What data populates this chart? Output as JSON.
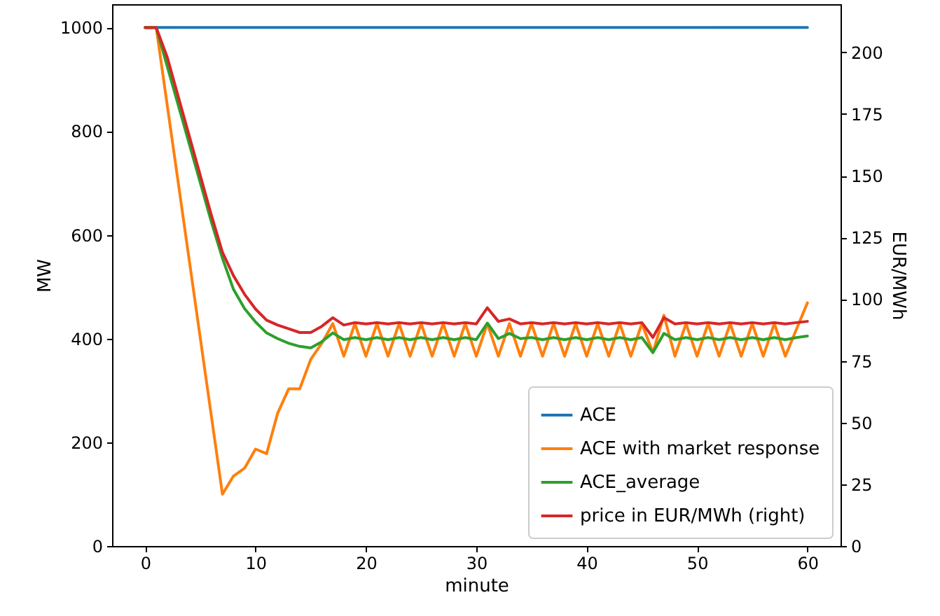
{
  "chart_data": {
    "type": "line",
    "xlabel": "minute",
    "ylabel": "MW",
    "y2label": "EUR/MWh",
    "x": [
      0,
      1,
      2,
      3,
      4,
      5,
      6,
      7,
      8,
      9,
      10,
      11,
      12,
      13,
      14,
      15,
      16,
      17,
      18,
      19,
      20,
      21,
      22,
      23,
      24,
      25,
      26,
      27,
      28,
      29,
      30,
      31,
      32,
      33,
      34,
      35,
      36,
      37,
      38,
      39,
      40,
      41,
      42,
      43,
      44,
      45,
      46,
      47,
      48,
      49,
      50,
      51,
      52,
      53,
      54,
      55,
      56,
      57,
      58,
      59,
      60
    ],
    "series": [
      {
        "name": "ACE",
        "color": "#1f77b4",
        "values": [
          1000,
          1000,
          1000,
          1000,
          1000,
          1000,
          1000,
          1000,
          1000,
          1000,
          1000,
          1000,
          1000,
          1000,
          1000,
          1000,
          1000,
          1000,
          1000,
          1000,
          1000,
          1000,
          1000,
          1000,
          1000,
          1000,
          1000,
          1000,
          1000,
          1000,
          1000,
          1000,
          1000,
          1000,
          1000,
          1000,
          1000,
          1000,
          1000,
          1000,
          1000,
          1000,
          1000,
          1000,
          1000,
          1000,
          1000,
          1000,
          1000,
          1000,
          1000,
          1000,
          1000,
          1000,
          1000,
          1000,
          1000,
          1000,
          1000,
          1000,
          1000
        ]
      },
      {
        "name": "ACE with market response",
        "color": "#ff7f0e",
        "values": [
          1000,
          1000,
          850,
          700,
          550,
          400,
          250,
          100,
          135,
          150,
          187,
          178,
          256,
          303,
          303,
          360,
          391,
          429,
          366,
          429,
          366,
          429,
          366,
          429,
          366,
          429,
          366,
          429,
          366,
          429,
          366,
          429,
          366,
          429,
          366,
          429,
          366,
          429,
          366,
          429,
          366,
          429,
          366,
          429,
          366,
          429,
          373,
          445,
          366,
          429,
          366,
          429,
          366,
          429,
          366,
          429,
          366,
          429,
          366,
          418,
          469
        ]
      },
      {
        "name": "ACE_average",
        "color": "#2ca02c",
        "values": [
          1000,
          1000,
          925,
          850,
          775,
          700,
          625,
          555,
          495,
          458,
          432,
          411,
          400,
          391,
          385,
          382,
          394,
          411,
          398,
          402,
          398,
          402,
          398,
          402,
          398,
          402,
          398,
          402,
          398,
          402,
          398,
          430,
          400,
          410,
          400,
          402,
          398,
          402,
          398,
          402,
          398,
          402,
          398,
          402,
          398,
          402,
          373,
          410,
          398,
          402,
          398,
          402,
          398,
          402,
          398,
          402,
          398,
          402,
          398,
          402,
          405
        ]
      },
      {
        "name": "price in EUR/MWh (right)",
        "color": "#d62728",
        "axis": "y2",
        "values": [
          210,
          210,
          198,
          182,
          166,
          150,
          134,
          119,
          109.5,
          102,
          96,
          91.5,
          89.5,
          88,
          86.5,
          86.5,
          89,
          92.5,
          89.5,
          90.5,
          90,
          90.5,
          90,
          90.5,
          90,
          90.5,
          90,
          90.5,
          90,
          90.5,
          90,
          96.5,
          91,
          92,
          90,
          90.5,
          90,
          90.5,
          90,
          90.5,
          90,
          90.5,
          90,
          90.5,
          90,
          90.5,
          84.5,
          92.5,
          90,
          90.5,
          90,
          90.5,
          90,
          90.5,
          90,
          90.5,
          90,
          90.5,
          90,
          90.5,
          91
        ]
      }
    ],
    "xlim": [
      -3,
      63
    ],
    "xticks": [
      0,
      10,
      20,
      30,
      40,
      50,
      60
    ],
    "ylim": [
      0,
      1045
    ],
    "yticks": [
      0,
      200,
      400,
      600,
      800,
      1000
    ],
    "y2lim": [
      0,
      219.5
    ],
    "y2ticks": [
      0,
      25,
      50,
      75,
      100,
      125,
      150,
      175,
      200
    ],
    "legend": "bottom right",
    "grid": false
  }
}
